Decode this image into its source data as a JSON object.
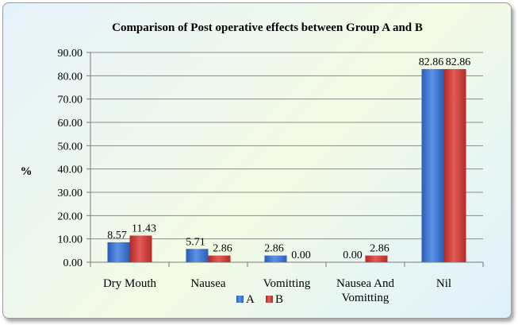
{
  "chart_data": {
    "type": "bar",
    "title": "Comparison of Post operative effects between Group A and B",
    "xlabel": "",
    "ylabel": "%",
    "ylim": [
      0,
      90
    ],
    "ytick_labels": [
      "0.00",
      "10.00",
      "20.00",
      "30.00",
      "40.00",
      "50.00",
      "60.00",
      "70.00",
      "80.00",
      "90.00"
    ],
    "categories": [
      [
        "Dry Mouth"
      ],
      [
        "Nausea"
      ],
      [
        "Vomitting"
      ],
      [
        "Nausea And",
        "Vomitting"
      ],
      [
        "Nil"
      ]
    ],
    "series": [
      {
        "name": "A",
        "values": [
          8.57,
          5.71,
          2.86,
          0.0,
          82.86
        ],
        "labels": [
          "8.57",
          "5.71",
          "2.86",
          "0.00",
          "82.86"
        ],
        "color": "#3f77d1"
      },
      {
        "name": "B",
        "values": [
          11.43,
          2.86,
          0.0,
          2.86,
          82.86
        ],
        "labels": [
          "11.43",
          "2.86",
          "0.00",
          "2.86",
          "82.86"
        ],
        "color": "#cf3a37"
      }
    ],
    "grid": true,
    "legend": "bottom-center"
  }
}
